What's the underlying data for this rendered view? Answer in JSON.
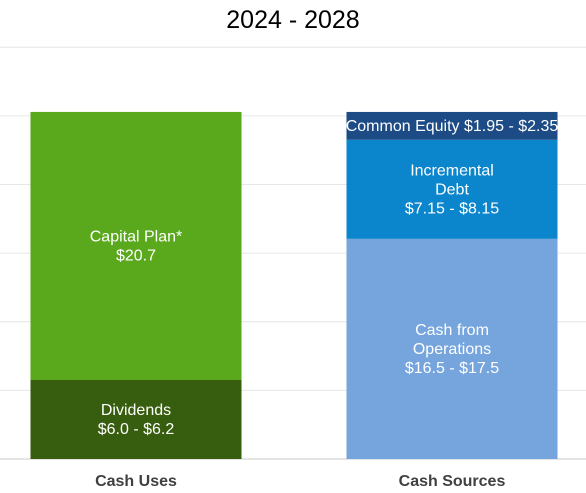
{
  "chart_data": {
    "type": "bar",
    "title": "2024 - 2028",
    "stacked": true,
    "grid": true,
    "legend": "none",
    "categories": [
      "Cash Uses",
      "Cash Sources"
    ],
    "bars": [
      {
        "category": "Cash Uses",
        "segments": [
          {
            "label": [
              "Dividends",
              "$6.0 - $6.2"
            ],
            "value": 6.1,
            "color": "#375e0e"
          },
          {
            "label": [
              "Capital Plan*",
              "$20.7"
            ],
            "value": 20.7,
            "color": "#5aa91c"
          }
        ]
      },
      {
        "category": "Cash Sources",
        "segments": [
          {
            "label": [
              "Cash from",
              "Operations",
              "$16.5 - $17.5"
            ],
            "value": 17.0,
            "color": "#75a5dc"
          },
          {
            "label": [
              "Incremental",
              "Debt",
              "$7.15 - $8.15"
            ],
            "value": 7.65,
            "color": "#0b85cc"
          },
          {
            "label": [
              "Common Equity $1.95 - $2.35"
            ],
            "value": 2.15,
            "color": "#1d4b85"
          }
        ]
      }
    ],
    "ylim": [
      0,
      30
    ]
  }
}
